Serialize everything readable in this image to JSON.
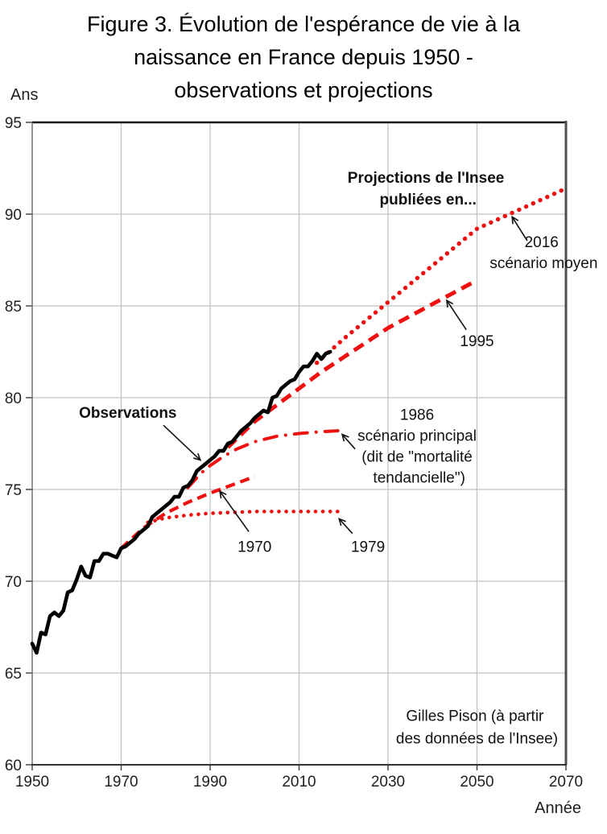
{
  "chart_data": {
    "type": "line",
    "title": "Figure 3. Évolution de l'espérance de vie à la naissance en France depuis 1950 - observations et projections",
    "title_lines": [
      "Figure 3. Évolution de l'espérance de vie à la",
      "naissance en France depuis 1950 -",
      "observations et projections"
    ],
    "y_axis": {
      "label": "Ans",
      "min": 60,
      "max": 95,
      "ticks": [
        95,
        90,
        85,
        80,
        75,
        70,
        65,
        60
      ],
      "grid": true
    },
    "x_axis": {
      "label": "Année",
      "min": 1950,
      "max": 2070,
      "ticks": [
        1950,
        1970,
        1990,
        2010,
        2030,
        2050,
        2070
      ],
      "grid": true
    },
    "colors": {
      "observations": "#000000",
      "projections": "#ee1111",
      "grid": "#c2c2c2",
      "axis": "#3a3a3a",
      "text": "#1a1a1a"
    },
    "legend": "none (labels drawn as in-plot annotations with arrows)",
    "series": [
      {
        "id": "proj_1979",
        "name": "Projection Insee 1979",
        "color": "#ee1111",
        "line_style": "dot",
        "points": [
          [
            1976,
            73.2
          ],
          [
            1980,
            73.45
          ],
          [
            1985,
            73.6
          ],
          [
            1990,
            73.7
          ],
          [
            1995,
            73.75
          ],
          [
            2000,
            73.8
          ],
          [
            2010,
            73.8
          ],
          [
            2019,
            73.8
          ]
        ]
      },
      {
        "id": "proj_1970",
        "name": "Projection Insee 1970",
        "color": "#ee1111",
        "line_style": "dash",
        "points": [
          [
            1970,
            71.8
          ],
          [
            1975,
            72.9
          ],
          [
            1980,
            73.7
          ],
          [
            1985,
            74.3
          ],
          [
            1990,
            74.8
          ],
          [
            1995,
            75.25
          ],
          [
            2000,
            75.7
          ]
        ]
      },
      {
        "id": "proj_1986",
        "name": "Projection Insee 1986 - scénario principal (dit de \"mortalité tendancielle\")",
        "color": "#ee1111",
        "line_style": "dashdot",
        "points": [
          [
            1985,
            75.1
          ],
          [
            1988,
            75.9
          ],
          [
            1990,
            76.3
          ],
          [
            1993,
            76.8
          ],
          [
            1996,
            77.2
          ],
          [
            2000,
            77.6
          ],
          [
            2005,
            77.9
          ],
          [
            2010,
            78.05
          ],
          [
            2015,
            78.15
          ],
          [
            2019,
            78.2
          ]
        ]
      },
      {
        "id": "proj_1995",
        "name": "Projection Insee 1995",
        "color": "#ee1111",
        "line_style": "longdash",
        "points": [
          [
            1994,
            77.3
          ],
          [
            2000,
            78.7
          ],
          [
            2005,
            79.6
          ],
          [
            2010,
            80.5
          ],
          [
            2015,
            81.4
          ],
          [
            2020,
            82.2
          ],
          [
            2030,
            83.8
          ],
          [
            2040,
            85.1
          ],
          [
            2050,
            86.4
          ]
        ]
      },
      {
        "id": "proj_2016",
        "name": "Projection Insee 2016 - scénario moyen",
        "color": "#ee1111",
        "line_style": "bolddot",
        "points": [
          [
            2014,
            81.9
          ],
          [
            2020,
            83.2
          ],
          [
            2030,
            85.2
          ],
          [
            2040,
            87.2
          ],
          [
            2050,
            89.2
          ],
          [
            2060,
            90.3
          ],
          [
            2070,
            91.4
          ]
        ]
      },
      {
        "id": "observations",
        "name": "Observations",
        "color": "#000000",
        "line_style": "solid",
        "x_start": 1950,
        "values": [
          66.6,
          66.1,
          67.2,
          67.1,
          68.1,
          68.3,
          68.1,
          68.4,
          69.4,
          69.5,
          70.1,
          70.8,
          70.3,
          70.2,
          71.1,
          71.1,
          71.5,
          71.5,
          71.4,
          71.3,
          71.8,
          71.9,
          72.1,
          72.3,
          72.6,
          72.8,
          73.0,
          73.5,
          73.7,
          73.9,
          74.1,
          74.3,
          74.6,
          74.6,
          75.1,
          75.2,
          75.5,
          76.0,
          76.2,
          76.4,
          76.6,
          76.8,
          77.1,
          77.1,
          77.5,
          77.6,
          77.9,
          78.2,
          78.4,
          78.6,
          78.9,
          79.1,
          79.3,
          79.2,
          80.0,
          80.1,
          80.5,
          80.7,
          80.9,
          81.0,
          81.4,
          81.7,
          81.7,
          82.0,
          82.4,
          82.1,
          82.4,
          82.5
        ]
      }
    ],
    "annotations": {
      "projections_header": {
        "lines": [
          "Projections de l'Insee",
          "publiées en..."
        ],
        "x": 2039,
        "y": 91.7,
        "bold": true,
        "lh": 27
      },
      "scenario_2016": {
        "lines": [
          "2016",
          "scénario moyen"
        ],
        "x": 2065,
        "y": 88.2,
        "bold": false,
        "lh": 26
      },
      "proj_1995_label": {
        "lines": [
          "1995"
        ],
        "x": 2050,
        "y": 82.8,
        "bold": false,
        "lh": 26
      },
      "scenario_1986": {
        "lines": [
          "1986",
          "scénario principal",
          "(dit de \"mortalité",
          "tendancielle\")"
        ],
        "x": 2037,
        "y": 78.8,
        "bold": false,
        "lh": 26
      },
      "observations_label": {
        "lines": [
          "Observations"
        ],
        "x": 1971.5,
        "y": 78.9,
        "bold": true,
        "lh": 26
      },
      "proj_1970_label": {
        "lines": [
          "1970"
        ],
        "x": 2000,
        "y": 71.6,
        "bold": false,
        "lh": 26
      },
      "proj_1979_label": {
        "lines": [
          "1979"
        ],
        "x": 2025.5,
        "y": 71.6,
        "bold": false,
        "lh": 26
      },
      "source": {
        "lines": [
          "Gilles Pison (à partir",
          "des données de l'Insee)"
        ],
        "x": 2050,
        "y": 62.4,
        "bold": false,
        "lh": 28
      }
    },
    "arrows": [
      {
        "name": "arrow-2016",
        "from": [
          2061.3,
          88.55
        ],
        "to": [
          2057.9,
          89.85
        ]
      },
      {
        "name": "arrow-1995",
        "from": [
          2047.6,
          83.7
        ],
        "to": [
          2043.2,
          85.3
        ]
      },
      {
        "name": "arrow-1986",
        "from": [
          2022.6,
          77.2
        ],
        "to": [
          2019.7,
          78.0
        ]
      },
      {
        "name": "arrow-observations",
        "from": [
          1979.5,
          78.5
        ],
        "to": [
          1987.8,
          76.6
        ]
      },
      {
        "name": "arrow-1970",
        "from": [
          1998.7,
          72.7
        ],
        "to": [
          1992.2,
          74.9
        ]
      },
      {
        "name": "arrow-1979",
        "from": [
          2022.0,
          72.6
        ],
        "to": [
          2019.0,
          73.4
        ]
      }
    ],
    "source_text": "Gilles Pison (à partir des données de l'Insee)"
  }
}
